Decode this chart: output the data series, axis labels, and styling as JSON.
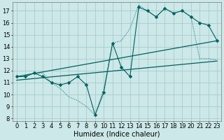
{
  "title": "",
  "xlabel": "Humidex (Indice chaleur)",
  "background_color": "#cce8e8",
  "grid_color": "#aacccc",
  "line_color": "#006060",
  "xlim": [
    -0.5,
    23.5
  ],
  "ylim": [
    7.8,
    17.7
  ],
  "yticks": [
    8,
    9,
    10,
    11,
    12,
    13,
    14,
    15,
    16,
    17
  ],
  "xticks": [
    0,
    1,
    2,
    3,
    4,
    5,
    6,
    7,
    8,
    9,
    10,
    11,
    12,
    13,
    14,
    15,
    16,
    17,
    18,
    19,
    20,
    21,
    22,
    23
  ],
  "jagged_y": [
    11.5,
    11.5,
    11.8,
    11.5,
    11.0,
    10.8,
    11.0,
    11.5,
    10.8,
    8.3,
    10.2,
    14.3,
    12.3,
    11.5,
    17.3,
    17.0,
    16.5,
    17.2,
    16.8,
    17.0,
    16.5,
    16.0,
    15.8,
    14.5
  ],
  "dotted_y": [
    11.5,
    11.5,
    11.8,
    11.8,
    11.0,
    10.5,
    9.8,
    9.5,
    9.0,
    8.3,
    10.5,
    14.3,
    14.5,
    15.5,
    17.5,
    17.0,
    16.5,
    17.2,
    16.8,
    17.0,
    16.5,
    13.0,
    13.0,
    12.9
  ],
  "reg1_y_start": 11.5,
  "reg1_y_end": 14.5,
  "reg2_y_start": 11.2,
  "reg2_y_end": 12.8,
  "marker_size": 2.5,
  "font_size_label": 7,
  "font_size_tick": 6
}
